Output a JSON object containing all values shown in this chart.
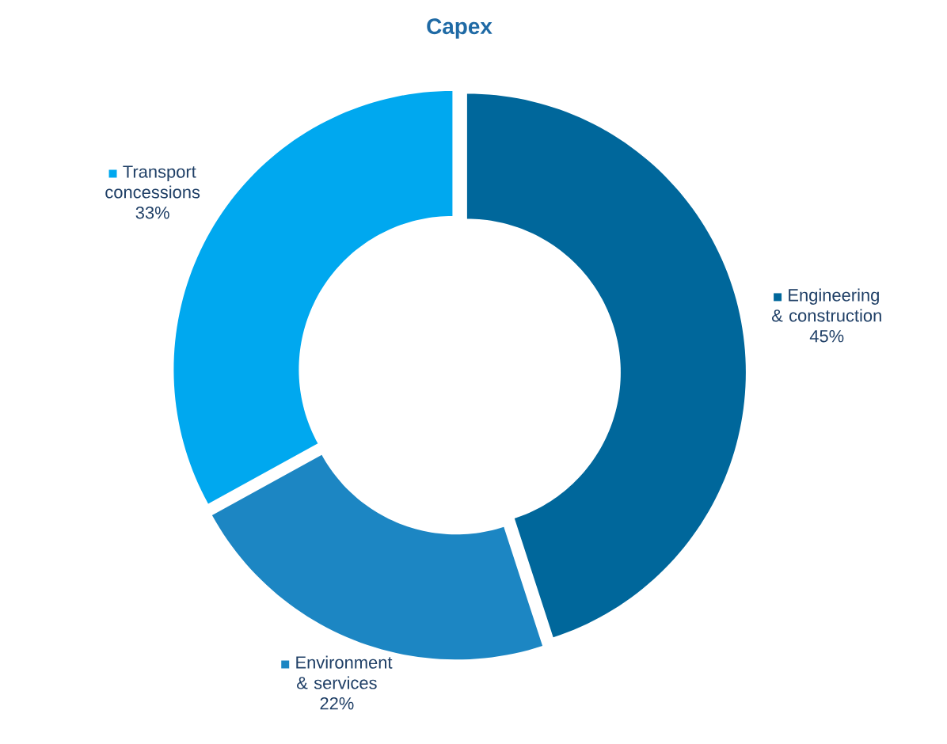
{
  "chart_data": {
    "type": "donut",
    "title": "Capex",
    "categories": [
      "Engineering & construction",
      "Environment & services",
      "Transport concessions"
    ],
    "values": [
      45,
      22,
      33
    ],
    "colors": [
      "#00679b",
      "#1c86c3",
      "#00a8ef"
    ],
    "value_labels": [
      "45%",
      "22%",
      "33%"
    ],
    "legend": "right"
  }
}
